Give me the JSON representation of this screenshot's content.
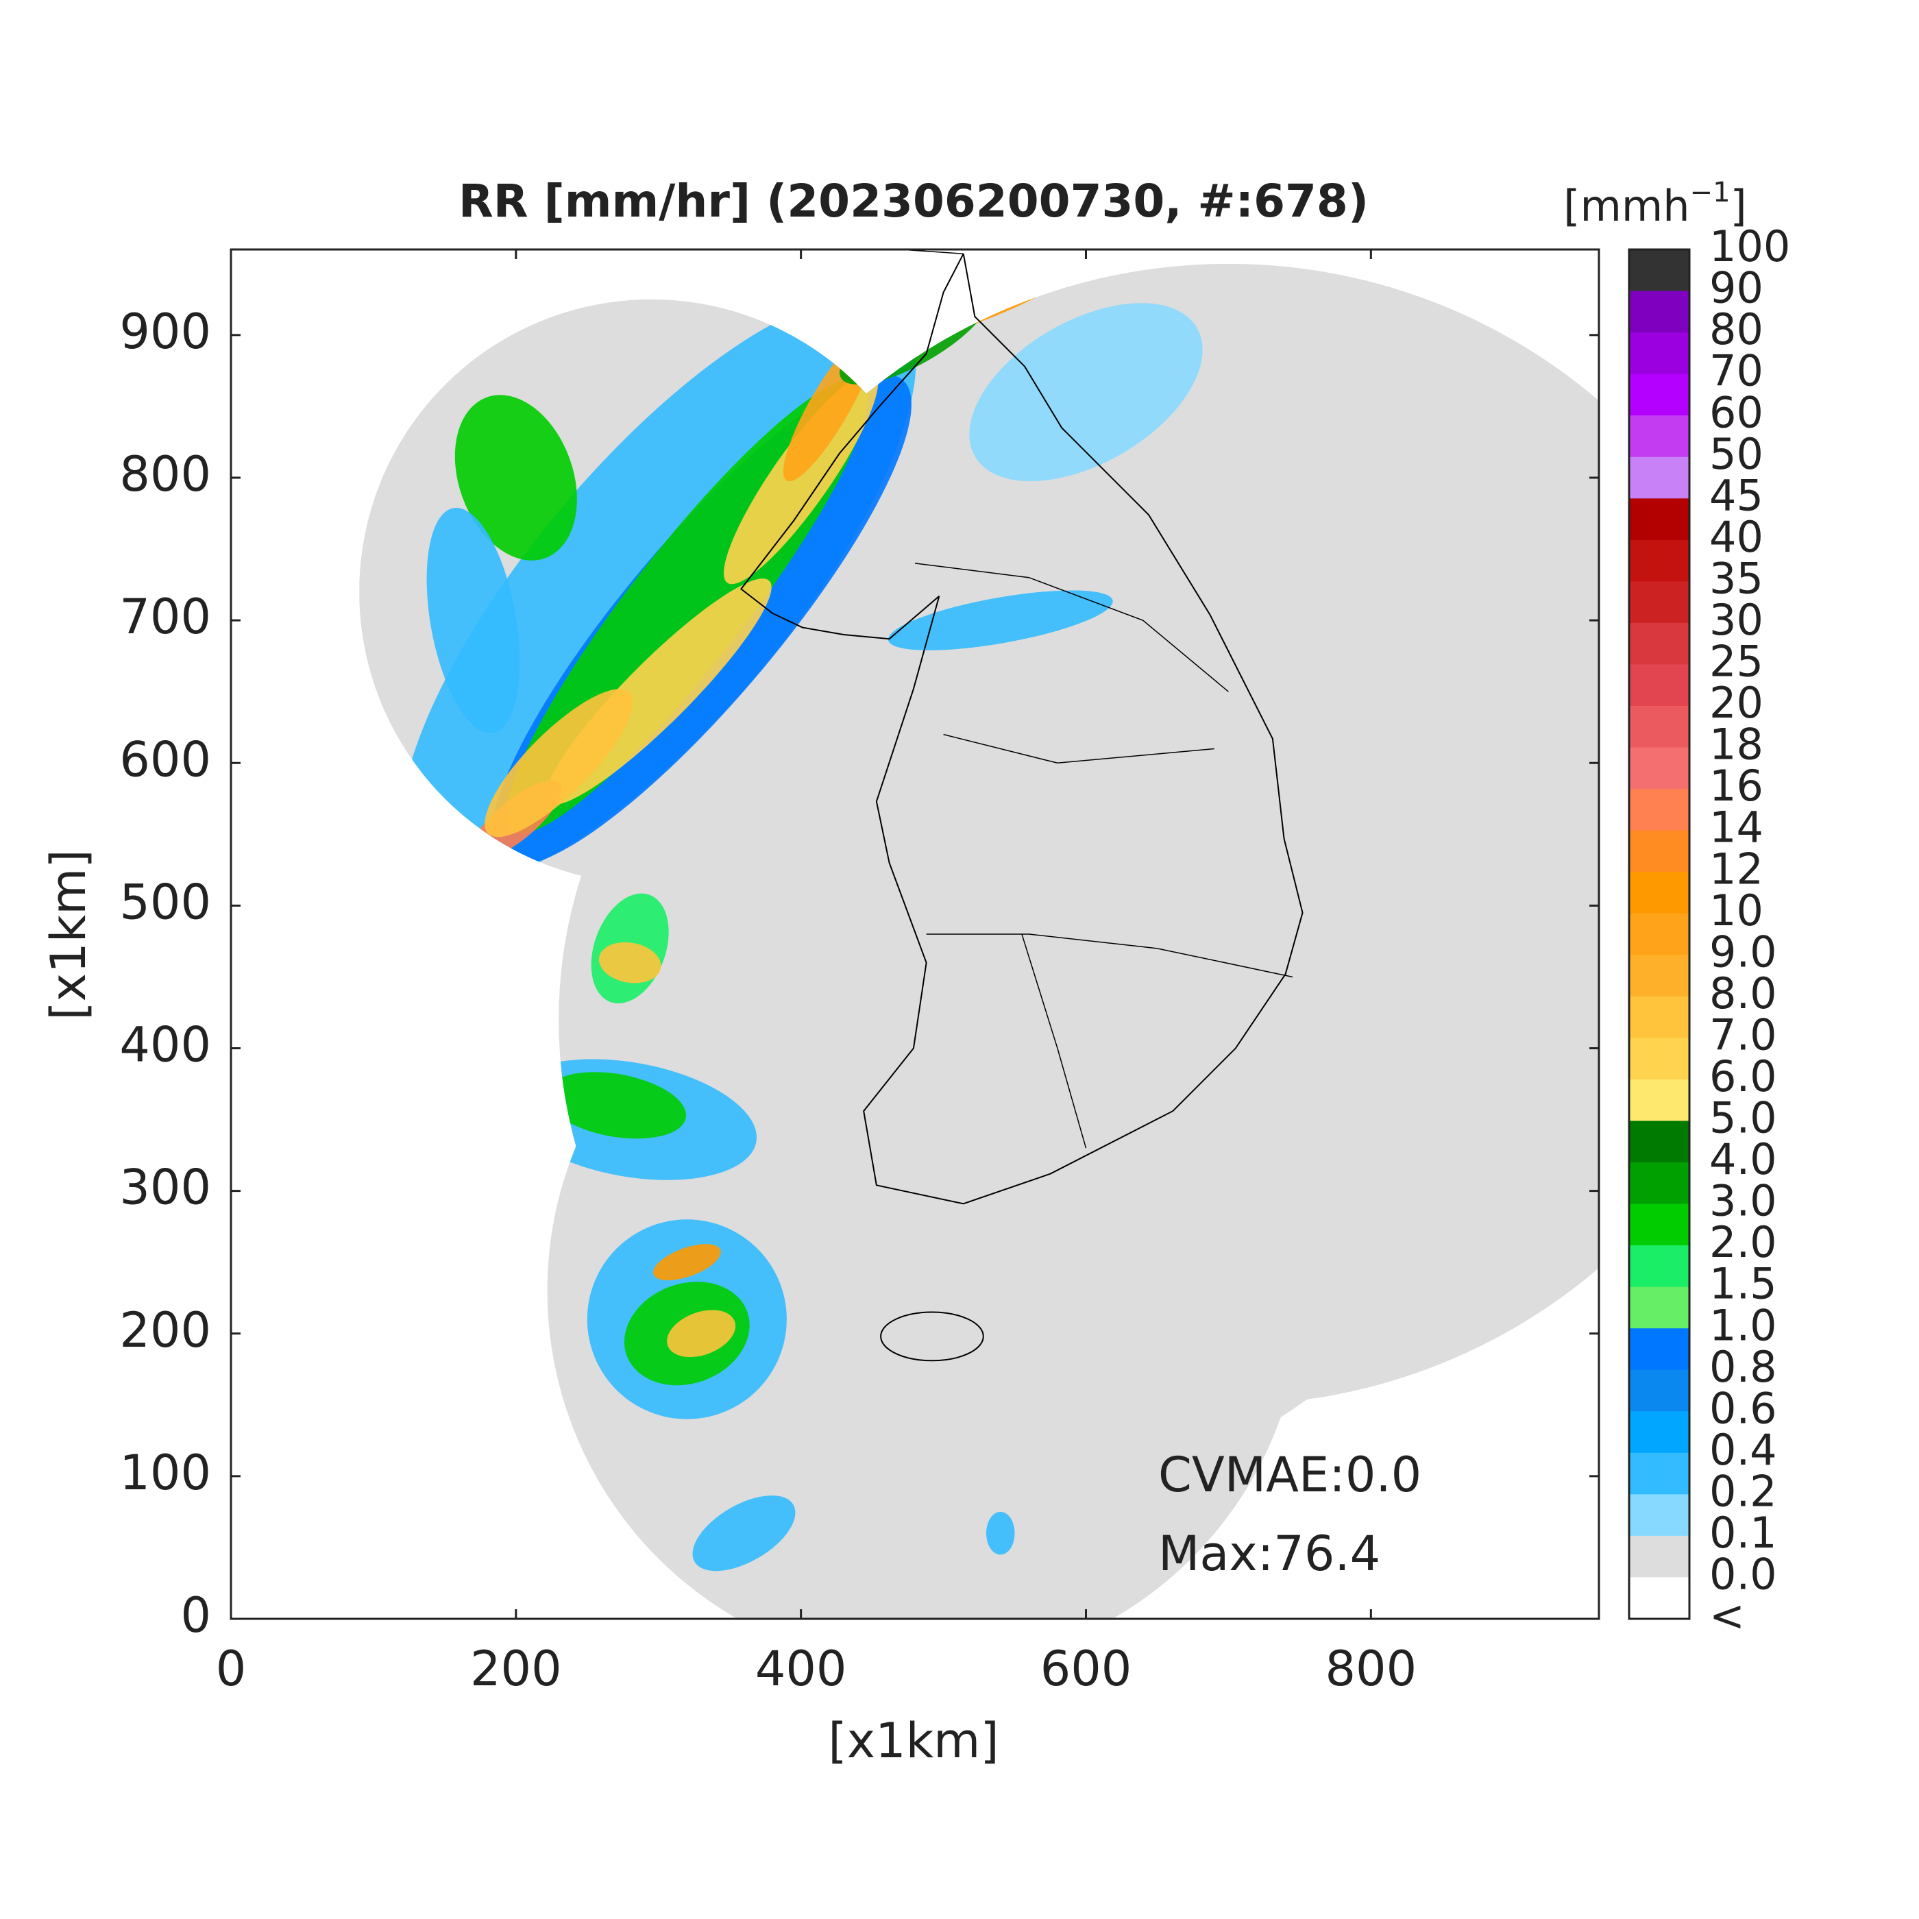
{
  "title": "RR [mm/hr] (202306200730, #:678)",
  "axes": {
    "x": {
      "label": "[x1km]",
      "lim": [
        0,
        960
      ],
      "ticks": [
        0,
        200,
        400,
        600,
        800
      ]
    },
    "y": {
      "label": "[x1km]",
      "lim": [
        0,
        960
      ],
      "ticks": [
        0,
        100,
        200,
        300,
        400,
        500,
        600,
        700,
        800,
        900
      ]
    }
  },
  "colorbar": {
    "unit": [
      "[mmh",
      "−1",
      "]"
    ],
    "labels": [
      "100",
      "90",
      "80",
      "70",
      "60",
      "50",
      "45",
      "40",
      "35",
      "30",
      "25",
      "20",
      "18",
      "16",
      "14",
      "12",
      "10",
      "9.0",
      "8.0",
      "7.0",
      "6.0",
      "5.0",
      "4.0",
      "3.0",
      "2.0",
      "1.5",
      "1.0",
      "0.8",
      "0.6",
      "0.4",
      "0.2",
      "0.1",
      "0.0",
      "<"
    ],
    "colors": [
      "#333333",
      "#7f00bf",
      "#9a00e0",
      "#b300ff",
      "#c43cf2",
      "#c881f7",
      "#b30000",
      "#c4120f",
      "#cc2222",
      "#d9383f",
      "#e2454f",
      "#ea5a5e",
      "#f47070",
      "#ff8050",
      "#ff8c22",
      "#ff9900",
      "#ffa41a",
      "#ffb02a",
      "#ffc33c",
      "#ffd34e",
      "#ffe86e",
      "#007a00",
      "#00a000",
      "#00cc00",
      "#1aee66",
      "#66ee66",
      "#0077ff",
      "#0a88f0",
      "#00a6ff",
      "#33bbff",
      "#88d9ff",
      "#dddddd",
      "#ffffff"
    ]
  },
  "annotations": [
    "CVMAE:0.0",
    "Max:76.4"
  ]
}
